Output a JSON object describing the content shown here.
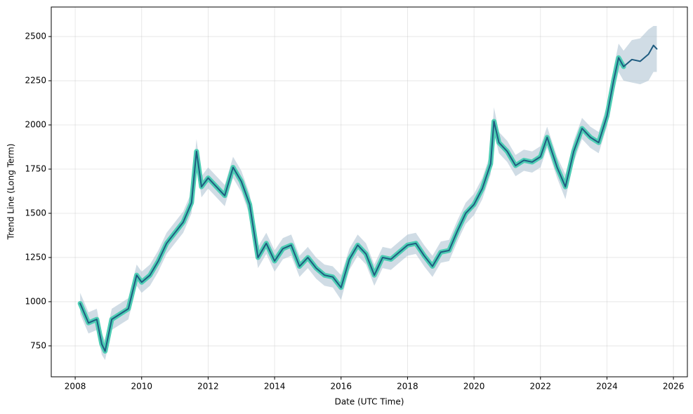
{
  "chart_data": {
    "type": "line",
    "xlabel": "Date (UTC Time)",
    "ylabel": "Trend Line (Long Term)",
    "x": [
      2008.15,
      2008.4,
      2008.65,
      2008.8,
      2008.9,
      2009.1,
      2009.35,
      2009.6,
      2009.85,
      2010.0,
      2010.25,
      2010.5,
      2010.75,
      2011.0,
      2011.25,
      2011.5,
      2011.65,
      2011.8,
      2012.0,
      2012.25,
      2012.5,
      2012.75,
      2013.0,
      2013.25,
      2013.5,
      2013.75,
      2014.0,
      2014.25,
      2014.5,
      2014.75,
      2015.0,
      2015.25,
      2015.5,
      2015.75,
      2016.0,
      2016.25,
      2016.5,
      2016.75,
      2017.0,
      2017.25,
      2017.5,
      2017.75,
      2018.0,
      2018.25,
      2018.5,
      2018.75,
      2019.0,
      2019.25,
      2019.5,
      2019.75,
      2020.0,
      2020.25,
      2020.5,
      2020.6,
      2020.75,
      2021.0,
      2021.25,
      2021.5,
      2021.75,
      2022.0,
      2022.2,
      2022.5,
      2022.75,
      2023.0,
      2023.25,
      2023.5,
      2023.75,
      2024.0,
      2024.2,
      2024.35,
      2024.5,
      2024.75,
      2025.0,
      2025.25,
      2025.4,
      2025.5
    ],
    "series": [
      {
        "color": "#4ecdb4",
        "values": [
          990,
          880,
          900,
          760,
          720,
          900,
          930,
          960,
          1150,
          1110,
          1150,
          1230,
          1330,
          1390,
          1450,
          1560,
          1850,
          1650,
          1700,
          1650,
          1600,
          1760,
          1680,
          1550,
          1250,
          1330,
          1230,
          1300,
          1320,
          1200,
          1250,
          1190,
          1150,
          1140,
          1080,
          1240,
          1320,
          1270,
          1150,
          1250,
          1240,
          1280,
          1320,
          1330,
          1260,
          1200,
          1280,
          1290,
          1400,
          1500,
          1550,
          1640,
          1780,
          2020,
          1900,
          1850,
          1770,
          1800,
          1790,
          1820,
          1930,
          1760,
          1650,
          1850,
          1980,
          1930,
          1900,
          2050,
          2250,
          2380,
          2330,
          null,
          null,
          null,
          null,
          null
        ]
      },
      {
        "color": "#1f5c80",
        "values": [
          990,
          880,
          900,
          760,
          720,
          900,
          930,
          960,
          1150,
          1110,
          1150,
          1230,
          1330,
          1390,
          1450,
          1560,
          1850,
          1650,
          1700,
          1650,
          1600,
          1760,
          1680,
          1550,
          1250,
          1330,
          1230,
          1300,
          1320,
          1200,
          1250,
          1190,
          1150,
          1140,
          1080,
          1240,
          1320,
          1270,
          1150,
          1250,
          1240,
          1280,
          1320,
          1330,
          1260,
          1200,
          1280,
          1290,
          1400,
          1500,
          1550,
          1640,
          1780,
          2020,
          1900,
          1850,
          1770,
          1800,
          1790,
          1820,
          1930,
          1760,
          1650,
          1850,
          1980,
          1930,
          1900,
          2050,
          2250,
          2380,
          2330,
          2370,
          2360,
          2400,
          2450,
          2430
        ]
      }
    ],
    "band": {
      "color": "#a9bfcf",
      "lower": [
        930,
        820,
        840,
        700,
        670,
        840,
        870,
        900,
        1090,
        1050,
        1090,
        1170,
        1270,
        1330,
        1390,
        1500,
        1780,
        1590,
        1640,
        1590,
        1540,
        1700,
        1620,
        1490,
        1190,
        1270,
        1170,
        1240,
        1260,
        1140,
        1190,
        1130,
        1090,
        1080,
        1010,
        1180,
        1260,
        1210,
        1090,
        1190,
        1180,
        1220,
        1260,
        1270,
        1200,
        1140,
        1220,
        1230,
        1340,
        1440,
        1490,
        1580,
        1720,
        1950,
        1840,
        1790,
        1710,
        1740,
        1730,
        1760,
        1870,
        1700,
        1580,
        1790,
        1920,
        1870,
        1840,
        1990,
        2180,
        2300,
        2250,
        2240,
        2230,
        2250,
        2300,
        2300
      ],
      "upper": [
        1050,
        940,
        960,
        820,
        780,
        960,
        990,
        1020,
        1210,
        1170,
        1210,
        1290,
        1390,
        1450,
        1510,
        1620,
        1920,
        1710,
        1760,
        1710,
        1660,
        1820,
        1740,
        1610,
        1310,
        1390,
        1290,
        1360,
        1380,
        1260,
        1310,
        1250,
        1210,
        1200,
        1150,
        1300,
        1380,
        1330,
        1210,
        1310,
        1300,
        1340,
        1380,
        1390,
        1320,
        1260,
        1340,
        1350,
        1460,
        1560,
        1610,
        1700,
        1840,
        2100,
        1960,
        1910,
        1830,
        1860,
        1850,
        1880,
        1990,
        1820,
        1720,
        1910,
        2040,
        1990,
        1960,
        2110,
        2320,
        2460,
        2420,
        2480,
        2490,
        2540,
        2560,
        2560
      ]
    },
    "xlim": [
      2007.28,
      2026.42
    ],
    "xticks": [
      2008,
      2010,
      2012,
      2014,
      2016,
      2018,
      2020,
      2022,
      2024,
      2026
    ],
    "ylim": [
      575,
      2667
    ],
    "yticks": [
      750,
      1000,
      1250,
      1500,
      1750,
      2000,
      2250,
      2500
    ],
    "grid": true
  }
}
